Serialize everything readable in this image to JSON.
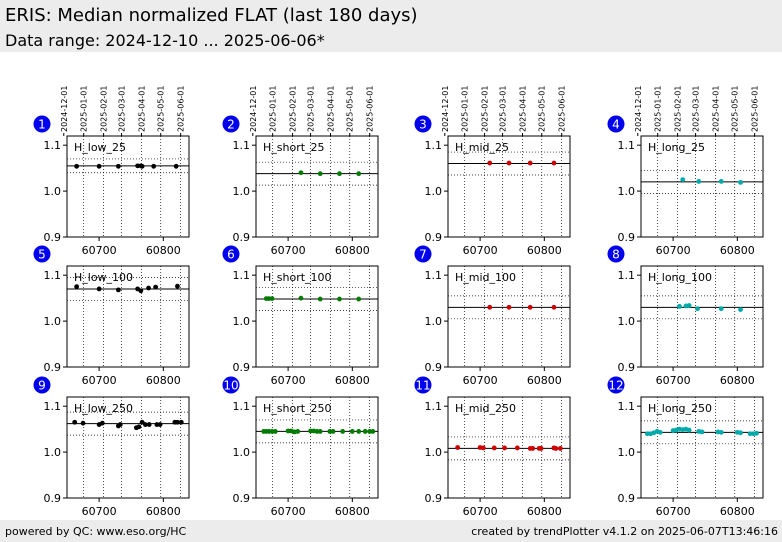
{
  "header": {
    "title": "ERIS: Median normalized FLAT (last 180 days)",
    "subtitle": "Data range: 2024-12-10 ... 2025-06-06*"
  },
  "footer": {
    "left": "powered by QC: www.eso.org/HC",
    "right": "created by trendPlotter v4.1.2 on 2025-06-07T13:46:16"
  },
  "colors": {
    "low": "#000000",
    "short": "#007a00",
    "mid": "#cc0000",
    "long": "#00aaaa",
    "badge": "#0000ee"
  },
  "chart_data": {
    "type": "scatter",
    "x_ticks": [
      60700,
      60800
    ],
    "y_ticks": [
      0.9,
      1.0,
      1.1
    ],
    "xlim": [
      60650,
      60840
    ],
    "ylim": [
      0.9,
      1.12
    ],
    "date_ticks": [
      "2024-12-01",
      "2025-01-01",
      "2025-02-01",
      "2025-03-01",
      "2025-04-01",
      "2025-05-01",
      "2025-06-01"
    ],
    "date_ticks_mjd": [
      60645,
      60676,
      60707,
      60735,
      60766,
      60796,
      60827
    ],
    "panels": [
      {
        "number": "1",
        "label": "H_low_25",
        "color_key": "low",
        "median": 1.055,
        "band": [
          1.04,
          1.07
        ],
        "points": [
          [
            60665,
            1.054
          ],
          [
            60700,
            1.054
          ],
          [
            60730,
            1.054
          ],
          [
            60760,
            1.055
          ],
          [
            60765,
            1.055
          ],
          [
            60767,
            1.054
          ],
          [
            60785,
            1.054
          ],
          [
            60820,
            1.054
          ]
        ]
      },
      {
        "number": "2",
        "label": "H_short_25",
        "color_key": "short",
        "median": 1.038,
        "band": [
          1.013,
          1.063
        ],
        "points": [
          [
            60720,
            1.04
          ],
          [
            60750,
            1.038
          ],
          [
            60780,
            1.038
          ],
          [
            60810,
            1.038
          ]
        ]
      },
      {
        "number": "3",
        "label": "H_mid_25",
        "color_key": "mid",
        "median": 1.06,
        "band": [
          1.035,
          1.085
        ],
        "points": [
          [
            60715,
            1.061
          ],
          [
            60745,
            1.061
          ],
          [
            60778,
            1.061
          ],
          [
            60815,
            1.061
          ]
        ]
      },
      {
        "number": "4",
        "label": "H_long_25",
        "color_key": "long",
        "median": 1.02,
        "band": [
          0.995,
          1.045
        ],
        "points": [
          [
            60715,
            1.025
          ],
          [
            60740,
            1.021
          ],
          [
            60775,
            1.021
          ],
          [
            60805,
            1.019
          ]
        ]
      },
      {
        "number": "5",
        "label": "H_low_100",
        "color_key": "low",
        "median": 1.07,
        "band": [
          1.045,
          1.095
        ],
        "points": [
          [
            60665,
            1.075
          ],
          [
            60700,
            1.07
          ],
          [
            60730,
            1.068
          ],
          [
            60760,
            1.07
          ],
          [
            60765,
            1.066
          ],
          [
            60777,
            1.072
          ],
          [
            60788,
            1.074
          ],
          [
            60822,
            1.076
          ]
        ]
      },
      {
        "number": "6",
        "label": "H_short_100",
        "color_key": "short",
        "median": 1.048,
        "band": [
          1.023,
          1.073
        ],
        "points": [
          [
            60666,
            1.049
          ],
          [
            60670,
            1.049
          ],
          [
            60675,
            1.049
          ],
          [
            60720,
            1.05
          ],
          [
            60750,
            1.048
          ],
          [
            60780,
            1.048
          ],
          [
            60810,
            1.048
          ]
        ]
      },
      {
        "number": "7",
        "label": "H_mid_100",
        "color_key": "mid",
        "median": 1.03,
        "band": [
          1.005,
          1.055
        ],
        "points": [
          [
            60715,
            1.03
          ],
          [
            60745,
            1.03
          ],
          [
            60778,
            1.03
          ],
          [
            60815,
            1.03
          ]
        ]
      },
      {
        "number": "8",
        "label": "H_long_100",
        "color_key": "long",
        "median": 1.03,
        "band": [
          1.005,
          1.055
        ],
        "points": [
          [
            60710,
            1.032
          ],
          [
            60720,
            1.033
          ],
          [
            60725,
            1.034
          ],
          [
            60738,
            1.027
          ],
          [
            60775,
            1.027
          ],
          [
            60805,
            1.025
          ]
        ]
      },
      {
        "number": "9",
        "label": "H_low_250",
        "color_key": "low",
        "median": 1.062,
        "band": [
          1.037,
          1.087
        ],
        "points": [
          [
            60662,
            1.065
          ],
          [
            60675,
            1.063
          ],
          [
            60700,
            1.06
          ],
          [
            60705,
            1.063
          ],
          [
            60730,
            1.057
          ],
          [
            60733,
            1.06
          ],
          [
            60758,
            1.053
          ],
          [
            60762,
            1.055
          ],
          [
            60767,
            1.065
          ],
          [
            60772,
            1.06
          ],
          [
            60778,
            1.06
          ],
          [
            60790,
            1.06
          ],
          [
            60795,
            1.06
          ],
          [
            60818,
            1.065
          ],
          [
            60822,
            1.065
          ],
          [
            60828,
            1.065
          ]
        ]
      },
      {
        "number": "10",
        "label": "H_short_250",
        "color_key": "short",
        "median": 1.045,
        "band": [
          1.02,
          1.07
        ],
        "points": [
          [
            60662,
            1.045
          ],
          [
            60666,
            1.045
          ],
          [
            60670,
            1.045
          ],
          [
            60675,
            1.045
          ],
          [
            60680,
            1.045
          ],
          [
            60700,
            1.046
          ],
          [
            60705,
            1.046
          ],
          [
            60710,
            1.044
          ],
          [
            60715,
            1.045
          ],
          [
            60735,
            1.046
          ],
          [
            60740,
            1.046
          ],
          [
            60745,
            1.045
          ],
          [
            60750,
            1.045
          ],
          [
            60765,
            1.045
          ],
          [
            60770,
            1.045
          ],
          [
            60785,
            1.045
          ],
          [
            60800,
            1.045
          ],
          [
            60810,
            1.045
          ],
          [
            60820,
            1.045
          ],
          [
            60827,
            1.045
          ],
          [
            60832,
            1.045
          ]
        ]
      },
      {
        "number": "11",
        "label": "H_mid_250",
        "color_key": "mid",
        "median": 1.008,
        "band": [
          0.983,
          1.033
        ],
        "points": [
          [
            60665,
            1.01
          ],
          [
            60700,
            1.01
          ],
          [
            60705,
            1.009
          ],
          [
            60722,
            1.009
          ],
          [
            60738,
            1.009
          ],
          [
            60758,
            1.009
          ],
          [
            60778,
            1.008
          ],
          [
            60782,
            1.008
          ],
          [
            60792,
            1.008
          ],
          [
            60795,
            1.008
          ],
          [
            60815,
            1.009
          ],
          [
            60818,
            1.008
          ],
          [
            60825,
            1.008
          ]
        ]
      },
      {
        "number": "12",
        "label": "H_long_250",
        "color_key": "long",
        "median": 1.043,
        "band": [
          1.018,
          1.068
        ],
        "points": [
          [
            60660,
            1.04
          ],
          [
            60665,
            1.04
          ],
          [
            60670,
            1.042
          ],
          [
            60675,
            1.045
          ],
          [
            60680,
            1.043
          ],
          [
            60700,
            1.047
          ],
          [
            60705,
            1.048
          ],
          [
            60710,
            1.05
          ],
          [
            60715,
            1.049
          ],
          [
            60720,
            1.05
          ],
          [
            60725,
            1.048
          ],
          [
            60740,
            1.045
          ],
          [
            60745,
            1.044
          ],
          [
            60770,
            1.044
          ],
          [
            60775,
            1.043
          ],
          [
            60800,
            1.043
          ],
          [
            60805,
            1.042
          ],
          [
            60820,
            1.04
          ],
          [
            60825,
            1.04
          ],
          [
            60830,
            1.041
          ]
        ]
      }
    ]
  }
}
